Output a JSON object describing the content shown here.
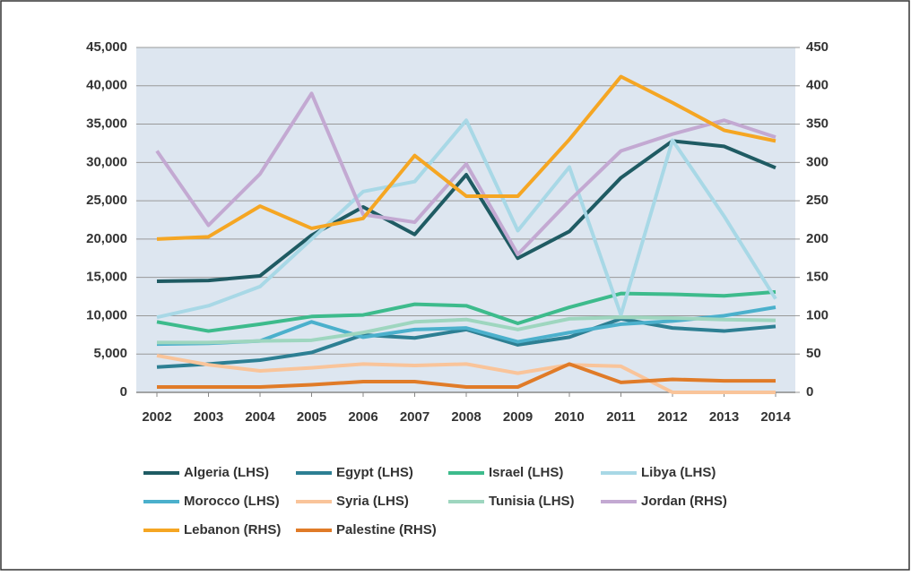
{
  "chart_data": {
    "type": "line",
    "x": [
      2002,
      2003,
      2004,
      2005,
      2006,
      2007,
      2008,
      2009,
      2010,
      2011,
      2012,
      2013,
      2014
    ],
    "xlim": [
      2002,
      2014
    ],
    "xticks": [
      2002,
      2003,
      2004,
      2005,
      2006,
      2007,
      2008,
      2009,
      2010,
      2011,
      2012,
      2013,
      2014
    ],
    "ylim": [
      0,
      45000
    ],
    "yticks": [
      0,
      {
        "value": 5000,
        "label": "5,000"
      },
      {
        "value": 10000,
        "label": "10,000"
      },
      {
        "value": 15000,
        "label": "15,000"
      },
      {
        "value": 20000,
        "label": "20,000"
      },
      {
        "value": 25000,
        "label": "25,000"
      },
      {
        "value": 30000,
        "label": "30,000"
      },
      {
        "value": 35000,
        "label": "35,000"
      },
      {
        "value": 40000,
        "label": "40,000"
      },
      {
        "value": 45000,
        "label": "45,000"
      }
    ],
    "y2lim": [
      0,
      450
    ],
    "y2ticks": [
      0,
      50,
      100,
      150,
      200,
      250,
      300,
      350,
      400,
      450
    ],
    "grid": true,
    "legend": "bottom",
    "series": [
      {
        "name": "Algeria (LHS)",
        "color": "#1f5b63",
        "values": [
          14500,
          14600,
          15200,
          20500,
          24200,
          20600,
          28400,
          17500,
          21000,
          28000,
          32800,
          32100,
          29300
        ]
      },
      {
        "name": "Egypt (LHS)",
        "color": "#2d7f93",
        "values": [
          3300,
          3700,
          4200,
          5200,
          7500,
          7100,
          8200,
          6200,
          7200,
          9600,
          8400,
          8000,
          8600
        ]
      },
      {
        "name": "Israel (LHS)",
        "color": "#3dbb8c",
        "values": [
          9200,
          8000,
          8900,
          9900,
          10100,
          11500,
          11300,
          9000,
          11100,
          12900,
          12800,
          12600,
          13100
        ]
      },
      {
        "name": "Libya (LHS)",
        "color": "#a8d8e6",
        "values": [
          9800,
          11300,
          13800,
          20000,
          26200,
          27500,
          35500,
          21100,
          29400,
          10100,
          32900,
          23000,
          12200
        ]
      },
      {
        "name": "Morocco (LHS)",
        "color": "#4bb0cc",
        "values": [
          6300,
          6400,
          6700,
          9200,
          7200,
          8200,
          8400,
          6600,
          7800,
          8900,
          9300,
          10000,
          11100
        ]
      },
      {
        "name": "Syria (LHS)",
        "color": "#f9c49a",
        "values": [
          4800,
          3600,
          2800,
          3200,
          3700,
          3500,
          3700,
          2500,
          3600,
          3400,
          0,
          0,
          0
        ]
      },
      {
        "name": "Tunisia (LHS)",
        "color": "#9ed6bf",
        "values": [
          6500,
          6500,
          6700,
          6800,
          7800,
          9200,
          9500,
          8200,
          9600,
          9800,
          9700,
          9500,
          9400
        ]
      },
      {
        "name": "Jordan (RHS)",
        "color": "#c3a9d2",
        "axis": "y2",
        "values": [
          315,
          218,
          285,
          390,
          232,
          222,
          298,
          180,
          250,
          315,
          337,
          355,
          333
        ]
      },
      {
        "name": "Lebanon (RHS)",
        "color": "#f5a623",
        "axis": "y2",
        "values": [
          200,
          203,
          243,
          214,
          227,
          309,
          256,
          256,
          330,
          412,
          378,
          342,
          328
        ]
      },
      {
        "name": "Palestine (RHS)",
        "color": "#e07b28",
        "axis": "y2",
        "values": [
          7,
          7,
          7,
          10,
          14,
          14,
          7,
          7,
          37,
          13,
          17,
          15,
          15
        ]
      }
    ]
  }
}
